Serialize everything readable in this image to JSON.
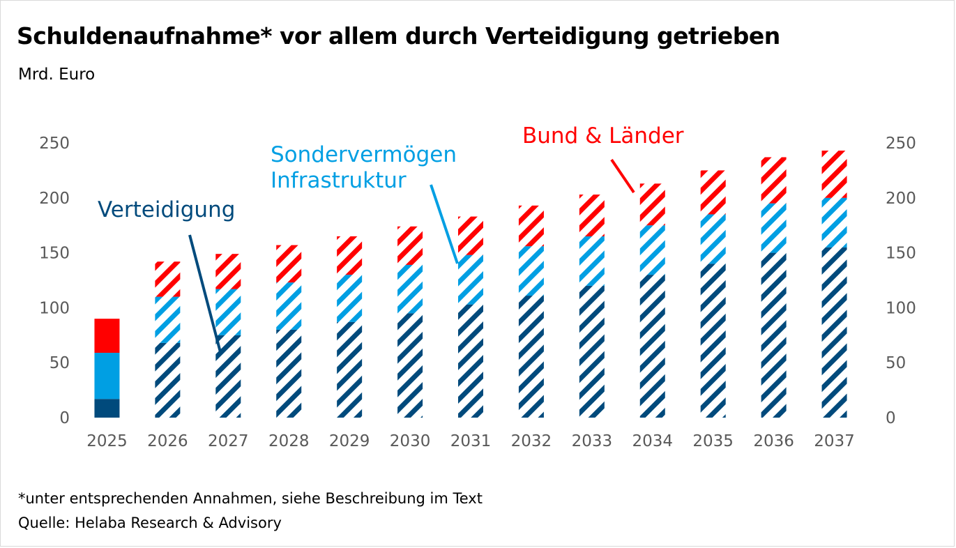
{
  "title": "Schuldenaufnahme* vor allem durch Verteidigung getrieben",
  "subtitle": "Mrd. Euro",
  "footnote": "*unter entsprechenden Annahmen, siehe Beschreibung im Text",
  "source": "Quelle: Helaba Research & Advisory",
  "colors": {
    "verteidigung": "#004a7c",
    "infrastruktur": "#009fe3",
    "bund_laender": "#ff0000",
    "axis_text": "#595959"
  },
  "chart_data": {
    "type": "bar",
    "stacked": true,
    "categories": [
      "2025",
      "2026",
      "2027",
      "2028",
      "2029",
      "2030",
      "2031",
      "2032",
      "2033",
      "2034",
      "2035",
      "2036",
      "2037"
    ],
    "series": [
      {
        "key": "verteidigung",
        "name": "Verteidigung",
        "values": [
          17,
          68,
          75,
          80,
          87,
          95,
          103,
          111,
          120,
          130,
          140,
          150,
          155
        ]
      },
      {
        "key": "infrastruktur",
        "name": "Sondervermögen Infrastruktur",
        "values": [
          42,
          42,
          42,
          43,
          43,
          44,
          45,
          45,
          45,
          45,
          45,
          45,
          45
        ]
      },
      {
        "key": "bund_laender",
        "name": "Bund & Länder",
        "values": [
          31,
          32,
          32,
          34,
          35,
          35,
          35,
          37,
          38,
          38,
          40,
          42,
          43
        ]
      }
    ],
    "hatched_from_category": "2026",
    "ylim": [
      0,
      250
    ],
    "yticks": [
      0,
      50,
      100,
      150,
      200,
      250
    ],
    "y_axis_both_sides": true,
    "grid": false,
    "legend": "inline annotations"
  }
}
